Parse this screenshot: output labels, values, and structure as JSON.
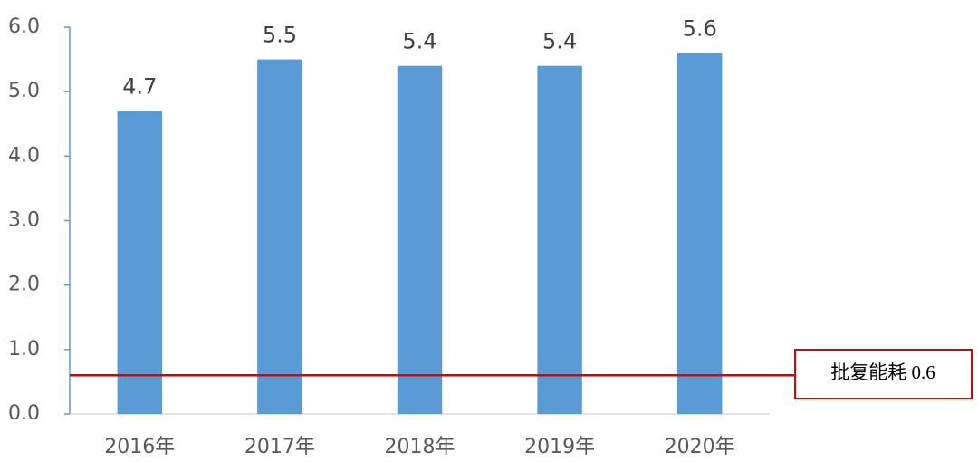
{
  "chart_data": {
    "type": "bar",
    "categories": [
      "2016年",
      "2017年",
      "2018年",
      "2019年",
      "2020年"
    ],
    "values": [
      4.7,
      5.5,
      5.4,
      5.4,
      5.6
    ],
    "color": "#5b9bd5",
    "ylim": [
      0,
      6
    ],
    "yticks": [
      {
        "value": 0,
        "label": "0.0"
      },
      {
        "value": 1,
        "label": "1.0"
      },
      {
        "value": 2,
        "label": "2.0"
      },
      {
        "value": 3,
        "label": "3.0"
      },
      {
        "value": 4,
        "label": "4.0"
      },
      {
        "value": 5,
        "label": "5.0"
      },
      {
        "value": 6,
        "label": "6.0"
      }
    ],
    "grid": false,
    "reference_line": {
      "value": 0.6,
      "label": "批复能耗 0.6",
      "color": "#e00000"
    }
  }
}
